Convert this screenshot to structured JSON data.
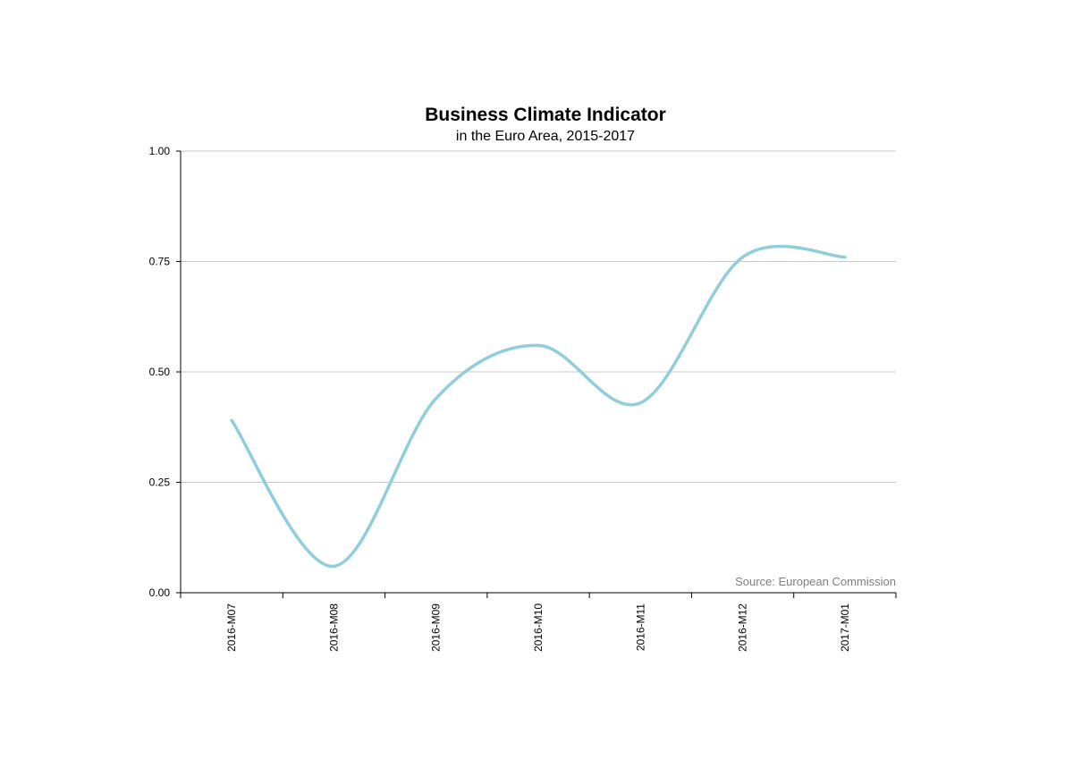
{
  "chart_data": {
    "type": "line",
    "title": "Business Climate Indicator",
    "subtitle": "in the Euro Area, 2015-2017",
    "source": "Source: European Commission",
    "categories": [
      "2016-M07",
      "2016-M08",
      "2016-M09",
      "2016-M10",
      "2016-M11",
      "2016-M12",
      "2017-M01"
    ],
    "series": [
      {
        "values": [
          0.39,
          0.06,
          0.44,
          0.56,
          0.43,
          0.76,
          0.76
        ],
        "color": "#92cddc"
      }
    ],
    "yticks": [
      "0.00",
      "0.25",
      "0.50",
      "0.75",
      "1.00"
    ],
    "ylim": [
      0,
      1
    ],
    "grid": true,
    "xlabel": "",
    "ylabel": ""
  }
}
